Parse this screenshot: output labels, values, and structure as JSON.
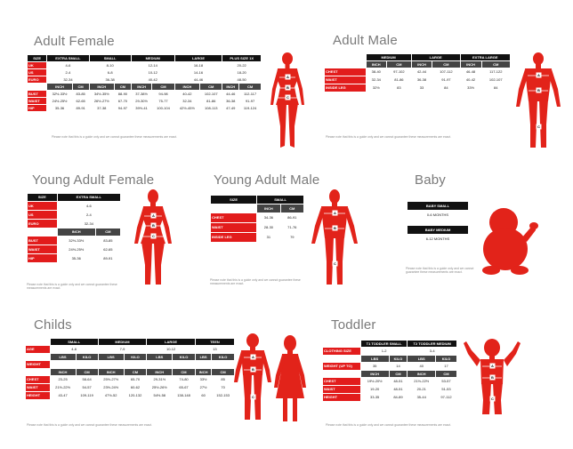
{
  "disclaimer": "Please note that this is a guide only and we cannot guarantee these measurements are exact.",
  "adult_female": {
    "title": "Adult Female",
    "size_header": "SIZE",
    "sizes": [
      "EXTRA SMALL",
      "SMALL",
      "MEDIUM",
      "LARGE",
      "PLUS SIZE 1X"
    ],
    "uk": {
      "label": "UK",
      "values": [
        "4-6",
        "8-10",
        "12-14",
        "16-18",
        "20-22"
      ]
    },
    "us": {
      "label": "US",
      "values": [
        "2-4",
        "6-8",
        "10-12",
        "14-16",
        "18-20"
      ]
    },
    "euro": {
      "label": "EURO",
      "values": [
        "32-34",
        "36-38",
        "40-42",
        "44-46",
        "48-50"
      ]
    },
    "inch": "INCH",
    "cm": "CM",
    "bust": {
      "label": "BUST",
      "values": [
        "32½-33½",
        "83-85",
        "34½-35½",
        "88-90",
        "37-38½",
        "94-98",
        "40-42",
        "102-107",
        "44-46",
        "112-117"
      ]
    },
    "waist": {
      "label": "WAIST",
      "values": [
        "24½-25½",
        "62-65",
        "26½-27½",
        "67-70",
        "29-30½",
        "75-77",
        "32-34",
        "81-86",
        "36-38",
        "91-97"
      ]
    },
    "hip": {
      "label": "HIP",
      "values": [
        "35-36",
        "89-91",
        "37-38",
        "94-97",
        "39½-41",
        "100-104",
        "42½-45½",
        "108-113",
        "47-49",
        "119-124"
      ]
    },
    "markers": [
      "A",
      "B",
      "C"
    ]
  },
  "adult_male": {
    "title": "Adult Male",
    "sizes": [
      "MEDIUM",
      "LARGE",
      "EXTRA LARGE"
    ],
    "inch": "INCH",
    "cm": "CM",
    "chest": {
      "label": "CHEST",
      "marker": "A",
      "values": [
        "38-40",
        "97-102",
        "42-44",
        "107-112",
        "46-48",
        "117-122"
      ]
    },
    "waist": {
      "label": "WAIST",
      "marker": "B",
      "values": [
        "32-34",
        "81-86",
        "36-38",
        "91-97",
        "40-42",
        "102-107"
      ]
    },
    "inside_leg": {
      "label": "INSIDE LEG",
      "marker": "C",
      "values": [
        "32½",
        "83",
        "33",
        "84",
        "33½",
        "84"
      ]
    },
    "markers": [
      "A",
      "B",
      "C"
    ]
  },
  "young_adult_female": {
    "title": "Young Adult Female",
    "size_header": "SIZE",
    "size": "EXTRA SMALL",
    "uk": {
      "label": "UK",
      "value": "4-6"
    },
    "us": {
      "label": "US",
      "value": "2-4"
    },
    "euro": {
      "label": "EURO",
      "value": "32-34"
    },
    "inch": "INCH",
    "cm": "CM",
    "bust": {
      "label": "BUST",
      "marker": "A",
      "values": [
        "32½-33½",
        "83-85"
      ]
    },
    "waist": {
      "label": "WAIST",
      "marker": "B",
      "values": [
        "24½-25½",
        "62-65"
      ]
    },
    "hip": {
      "label": "HIP",
      "marker": "C",
      "values": [
        "35-36",
        "89-91"
      ]
    },
    "markers": [
      "A",
      "B",
      "C"
    ]
  },
  "young_adult_male": {
    "title": "Young Adult Male",
    "size_header": "SIZE",
    "size": "SMALL",
    "inch": "INCH",
    "cm": "CM",
    "chest": {
      "label": "CHEST",
      "marker": "A",
      "values": [
        "34-36",
        "86-91"
      ]
    },
    "waist": {
      "label": "WAIST",
      "marker": "B",
      "values": [
        "28-30",
        "71-76"
      ]
    },
    "inside_leg": {
      "label": "INSIDE LEG",
      "marker": "C",
      "values": [
        "31",
        "79"
      ]
    },
    "markers": [
      "A",
      "B",
      "C"
    ]
  },
  "baby": {
    "title": "Baby",
    "small": {
      "label": "BABY SMALL",
      "value": "0-6 MONTHS"
    },
    "medium": {
      "label": "BABY MEDIUM",
      "value": "6-12 MONTHS"
    }
  },
  "childs": {
    "title": "Childs",
    "sizes": [
      "SMALL",
      "MEDIUM",
      "LARGE",
      "TEEN"
    ],
    "age": {
      "label": "AGE",
      "values": [
        "4-6",
        "7-9",
        "10-12",
        "13"
      ]
    },
    "weight_label": "WEIGHT",
    "weight_units": [
      "LBS",
      "KILO"
    ],
    "weight": [
      "",
      "",
      "",
      "",
      "",
      "",
      "",
      ""
    ],
    "inch": "INCH",
    "cm": "CM",
    "chest": {
      "label": "CHEST",
      "values": [
        "23-25",
        "58-64",
        "25½-27½",
        "65-70",
        "29-31½",
        "74-80",
        "33½",
        "85"
      ]
    },
    "waist": {
      "label": "WAIST",
      "values": [
        "21½-22½",
        "54-57",
        "23½-24½",
        "60-62",
        "25½-26½",
        "65-67",
        "27½",
        "70"
      ]
    },
    "height": {
      "label": "HEIGHT",
      "values": [
        "43-47",
        "109-119",
        "47½-52",
        "120-132",
        "54½-58",
        "138-148",
        "60",
        "152-153"
      ]
    },
    "markers": [
      "A",
      "B",
      "C"
    ]
  },
  "toddler": {
    "title": "Toddler",
    "sizes": [
      "T1 TODDLER SMALL",
      "T2 TODDLER MEDIUM"
    ],
    "clothing_size": {
      "label": "CLOTHING SIZE",
      "values": [
        "1-2",
        "3-4"
      ]
    },
    "weight_label": "WEIGHT (UP TO)",
    "weight_units": [
      "LBS",
      "KILO"
    ],
    "weight": [
      "35",
      "14",
      "40",
      "17"
    ],
    "inch": "INCH",
    "cm": "CM",
    "chest": {
      "label": "CHEST",
      "values": [
        "19½-20½",
        "48-51",
        "21½-22½",
        "53-57"
      ]
    },
    "waist": {
      "label": "WAIST",
      "values": [
        "19-20",
        "48-51",
        "20-21",
        "51-53"
      ]
    },
    "height": {
      "label": "HEIGHT",
      "values": [
        "33-35",
        "84-89",
        "35-44",
        "97-112"
      ]
    },
    "markers": [
      "A",
      "B",
      "C"
    ]
  }
}
